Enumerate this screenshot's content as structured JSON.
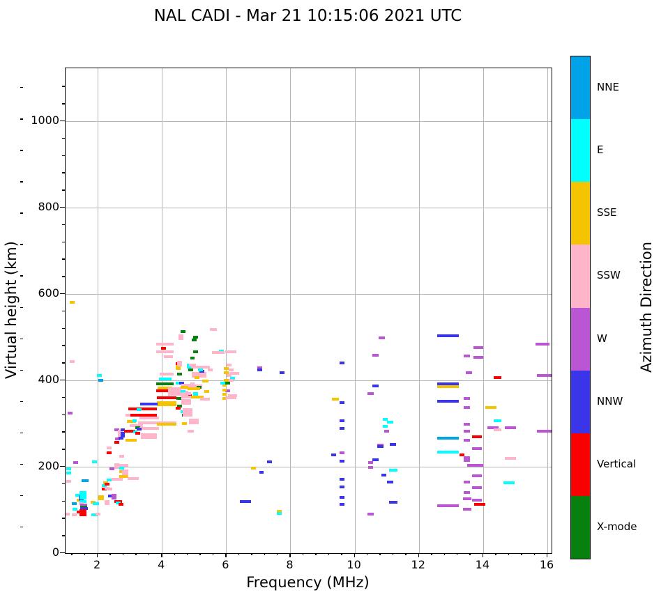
{
  "title": "NAL CADI - Mar 21 10:15:06 2021 UTC",
  "chart_data": {
    "type": "scatter",
    "title": "NAL CADI - Mar 21 10:15:06 2021 UTC",
    "xlabel": "Frequency (MHz)",
    "ylabel": "Virtual height (km)",
    "xlim": [
      1.0,
      16.1
    ],
    "ylim": [
      0,
      1122
    ],
    "x_major_ticks": [
      2,
      4,
      6,
      8,
      10,
      12,
      14,
      16
    ],
    "y_major_ticks": [
      0,
      200,
      400,
      600,
      800,
      1000
    ],
    "x_minor_step": 0.4,
    "y_minor_step": 40,
    "grid": true,
    "colorbar": {
      "label": "Azimuth Direction",
      "categories_top_to_bottom": [
        "NNE",
        "E",
        "SSE",
        "SSW",
        "W",
        "NNW",
        "Vertical",
        "X-mode"
      ],
      "colors": {
        "NNE": "#00a2e8",
        "E": "#00ffff",
        "SSE": "#f5c400",
        "SSW": "#ffb5c9",
        "W": "#ba55d3",
        "NNW": "#3a35e8",
        "Vertical": "#fa0000",
        "X-mode": "#088010"
      }
    },
    "direction_codes": {
      "V": "Vertical",
      "X": "X-mode"
    },
    "point_format": "[freq_MHz, virtual_height_km, direction, optional_width_MHz]",
    "points": [
      [
        1.2,
        580,
        "SSE"
      ],
      [
        1.2,
        443,
        "SSW"
      ],
      [
        1.15,
        324,
        "W"
      ],
      [
        1.32,
        210,
        "W"
      ],
      [
        1.1,
        195,
        "E"
      ],
      [
        1.1,
        185,
        "E"
      ],
      [
        1.1,
        166,
        "SSW"
      ],
      [
        1.9,
        211,
        "E"
      ],
      [
        1.05,
        91,
        "SSW"
      ],
      [
        1.27,
        88,
        "SSW"
      ],
      [
        1.28,
        115,
        "NNE"
      ],
      [
        1.3,
        102,
        "E"
      ],
      [
        1.37,
        134,
        "E"
      ],
      [
        1.43,
        122,
        "SSE"
      ],
      [
        1.48,
        131,
        "NNW"
      ],
      [
        1.48,
        124,
        "NNW"
      ],
      [
        1.55,
        140,
        "E",
        0.22
      ],
      [
        1.55,
        134,
        "E",
        0.22
      ],
      [
        1.55,
        127,
        "E",
        0.22
      ],
      [
        1.55,
        120,
        "E",
        0.22
      ],
      [
        1.48,
        115,
        "SSW"
      ],
      [
        1.57,
        111,
        "W",
        0.22
      ],
      [
        1.57,
        107,
        "X",
        0.22
      ],
      [
        1.58,
        103,
        "NNW",
        0.25
      ],
      [
        1.55,
        99,
        "V",
        0.22
      ],
      [
        1.55,
        94,
        "V",
        0.22
      ],
      [
        1.55,
        89,
        "V",
        0.22
      ],
      [
        1.43,
        95,
        "V"
      ],
      [
        1.6,
        168,
        "NNE",
        0.22
      ],
      [
        1.85,
        117,
        "SSE"
      ],
      [
        1.95,
        114,
        "E",
        0.2
      ],
      [
        2.1,
        131,
        "SSE",
        0.18
      ],
      [
        2.1,
        126,
        "SSE",
        0.18
      ],
      [
        1.9,
        89,
        "E",
        0.2
      ],
      [
        2.0,
        90,
        "SSW"
      ],
      [
        2.2,
        148,
        "V"
      ],
      [
        2.3,
        150,
        "SSW"
      ],
      [
        2.38,
        149,
        "SSW"
      ],
      [
        2.4,
        133,
        "NNW"
      ],
      [
        2.5,
        134,
        "W"
      ],
      [
        2.5,
        128,
        "W"
      ],
      [
        2.6,
        120,
        "V"
      ],
      [
        2.68,
        119,
        "V"
      ],
      [
        2.64,
        116,
        "E"
      ],
      [
        2.72,
        113,
        "V"
      ],
      [
        2.3,
        120,
        "SSW"
      ],
      [
        2.3,
        114,
        "SSW"
      ],
      [
        2.2,
        156,
        "E"
      ],
      [
        2.25,
        163,
        "SSE"
      ],
      [
        2.3,
        160,
        "V"
      ],
      [
        2.35,
        170,
        "E"
      ],
      [
        2.05,
        411,
        "E"
      ],
      [
        2.1,
        400,
        "NNE"
      ],
      [
        2.35,
        243,
        "SSW"
      ],
      [
        2.35,
        232,
        "V"
      ],
      [
        2.45,
        195,
        "W"
      ],
      [
        2.6,
        205,
        "SSW"
      ],
      [
        2.6,
        199,
        "SSW"
      ],
      [
        2.75,
        197,
        "E"
      ],
      [
        2.8,
        203,
        "SSW",
        0.3
      ],
      [
        2.75,
        189,
        "SSE"
      ],
      [
        2.85,
        190,
        "SSW",
        0.2
      ],
      [
        2.85,
        184,
        "SSW",
        0.2
      ],
      [
        2.85,
        178,
        "SSW",
        0.2
      ],
      [
        2.8,
        178,
        "SSE",
        0.25
      ],
      [
        2.6,
        171,
        "SSW",
        0.35
      ],
      [
        3.1,
        172,
        "SSW",
        0.35
      ],
      [
        2.75,
        224,
        "SSW"
      ],
      [
        2.6,
        285,
        "W"
      ],
      [
        2.7,
        283,
        "SSW"
      ],
      [
        2.7,
        277,
        "SSW"
      ],
      [
        2.7,
        271,
        "SSW"
      ],
      [
        2.78,
        285,
        "NNW"
      ],
      [
        2.78,
        278,
        "NNW"
      ],
      [
        2.78,
        271,
        "NNW"
      ],
      [
        3.0,
        282,
        "V",
        0.35
      ],
      [
        3.17,
        280,
        "E"
      ],
      [
        3.25,
        277,
        "V"
      ],
      [
        3.6,
        274,
        "SSW",
        0.5
      ],
      [
        3.6,
        268,
        "SSW",
        0.5
      ],
      [
        2.62,
        264,
        "W"
      ],
      [
        2.72,
        266,
        "NNW"
      ],
      [
        3.05,
        262,
        "SSE",
        0.35
      ],
      [
        2.6,
        256,
        "V"
      ],
      [
        4.1,
        392,
        "X",
        0.55
      ],
      [
        4.5,
        394,
        "E"
      ],
      [
        4.62,
        393,
        "NNW"
      ],
      [
        4.1,
        383,
        "SSE",
        0.45
      ],
      [
        4.1,
        376,
        "V",
        0.55
      ],
      [
        4.15,
        360,
        "V",
        0.6
      ],
      [
        4.4,
        371,
        "E"
      ],
      [
        4.15,
        349,
        "SSE",
        0.6
      ],
      [
        4.15,
        343,
        "SSE",
        0.6
      ],
      [
        3.6,
        345,
        "NNW",
        0.55
      ],
      [
        3.4,
        334,
        "V",
        0.9
      ],
      [
        3.3,
        333,
        "E"
      ],
      [
        3.4,
        319,
        "V",
        0.9
      ],
      [
        3.6,
        313,
        "SSW",
        0.6
      ],
      [
        2.95,
        320,
        "SSW"
      ],
      [
        3.05,
        305,
        "SSE",
        0.3
      ],
      [
        3.15,
        306,
        "E"
      ],
      [
        3.85,
        302,
        "SSW",
        1.2
      ],
      [
        4.15,
        299,
        "SSE",
        0.6
      ],
      [
        3.2,
        295,
        "SSW",
        0.4
      ],
      [
        3.25,
        290,
        "X"
      ],
      [
        3.6,
        289,
        "SSW",
        0.6
      ],
      [
        3.3,
        287,
        "NNW"
      ],
      [
        4.75,
        388,
        "SSW",
        0.3
      ],
      [
        4.75,
        382,
        "SSW",
        0.3
      ],
      [
        5.1,
        387,
        "SSW",
        0.3
      ],
      [
        4.85,
        365,
        "V"
      ],
      [
        4.55,
        341,
        "X"
      ],
      [
        4.65,
        328,
        "E"
      ],
      [
        4.7,
        320,
        "X"
      ],
      [
        4.8,
        332,
        "SSW",
        0.3
      ],
      [
        4.8,
        326,
        "SSW",
        0.3
      ],
      [
        4.8,
        319,
        "SSW",
        0.3
      ],
      [
        5.0,
        308,
        "SSW",
        0.3
      ],
      [
        5.0,
        302,
        "SSW",
        0.3
      ],
      [
        4.7,
        300,
        "SSE"
      ],
      [
        4.9,
        283,
        "SSW",
        0.2
      ],
      [
        4.4,
        380,
        "SSW",
        0.4
      ],
      [
        4.4,
        374,
        "SSW",
        0.4
      ],
      [
        4.4,
        368,
        "SSW",
        0.4
      ],
      [
        4.7,
        372,
        "SSW",
        0.25
      ],
      [
        4.7,
        364,
        "SSW",
        0.25
      ],
      [
        4.5,
        336,
        "V"
      ],
      [
        4.65,
        375,
        "E"
      ],
      [
        4.52,
        358,
        "X"
      ],
      [
        4.15,
        415,
        "SSW",
        0.45
      ],
      [
        4.1,
        404,
        "E",
        0.4
      ],
      [
        4.5,
        432,
        "SSE"
      ],
      [
        4.5,
        427,
        "SSE"
      ],
      [
        4.5,
        439,
        "V"
      ],
      [
        4.85,
        436,
        "E"
      ],
      [
        4.85,
        430,
        "E"
      ],
      [
        4.55,
        414,
        "X"
      ],
      [
        4.9,
        424,
        "X"
      ],
      [
        5.2,
        430,
        "SSW",
        0.6
      ],
      [
        5.15,
        416,
        "SSW",
        0.45
      ],
      [
        5.15,
        410,
        "SSW",
        0.45
      ],
      [
        5.25,
        421,
        "NNW"
      ],
      [
        5.1,
        406,
        "SSE"
      ],
      [
        5.35,
        399,
        "SSE",
        0.2
      ],
      [
        4.95,
        392,
        "SSW"
      ],
      [
        4.95,
        386,
        "SSW"
      ],
      [
        4.7,
        384,
        "SSE",
        0.25
      ],
      [
        5.15,
        384,
        "X"
      ],
      [
        5.0,
        380,
        "SSE",
        0.4
      ],
      [
        5.05,
        370,
        "E"
      ],
      [
        5.05,
        364,
        "E"
      ],
      [
        5.1,
        361,
        "SSE",
        0.4
      ],
      [
        4.75,
        370,
        "SSW",
        0.3
      ],
      [
        4.75,
        362,
        "SSW",
        0.3
      ],
      [
        4.75,
        354,
        "SSW",
        0.3
      ],
      [
        4.75,
        347,
        "SSW",
        0.3
      ],
      [
        5.35,
        356,
        "SSW",
        0.3
      ],
      [
        5.4,
        375,
        "SSE"
      ],
      [
        5.5,
        424,
        "SSW"
      ],
      [
        6.05,
        376,
        "W"
      ],
      [
        5.95,
        388,
        "SSE"
      ],
      [
        5.95,
        378,
        "SSE"
      ],
      [
        5.95,
        368,
        "SSE"
      ],
      [
        5.95,
        358,
        "SSE"
      ],
      [
        6.2,
        364,
        "SSW",
        0.3
      ],
      [
        6.2,
        405,
        "E"
      ],
      [
        6.25,
        416,
        "SSW",
        0.3
      ],
      [
        6.05,
        393,
        "X"
      ],
      [
        4.1,
        484,
        "SSW",
        0.55
      ],
      [
        4.1,
        466,
        "SSW",
        0.55
      ],
      [
        4.6,
        503,
        "SSW"
      ],
      [
        4.6,
        497,
        "SSW"
      ],
      [
        5.6,
        518,
        "SSW",
        0.2
      ],
      [
        4.65,
        513,
        "X"
      ],
      [
        5.0,
        494,
        "X"
      ],
      [
        5.05,
        500,
        "X"
      ],
      [
        5.05,
        466,
        "X"
      ],
      [
        4.95,
        451,
        "X"
      ],
      [
        5.85,
        468,
        "E"
      ],
      [
        5.75,
        464,
        "SSW",
        0.4
      ],
      [
        6.15,
        466,
        "SSW",
        0.35
      ],
      [
        4.55,
        442,
        "SSW"
      ],
      [
        4.55,
        436,
        "SSW"
      ],
      [
        4.95,
        436,
        "SSW",
        0.2
      ],
      [
        5.2,
        424,
        "E"
      ],
      [
        4.05,
        475,
        "V"
      ],
      [
        4.2,
        455,
        "SSW",
        0.3
      ],
      [
        6.1,
        435,
        "SSW"
      ],
      [
        6.15,
        425,
        "SSW"
      ],
      [
        6.1,
        412,
        "SSW"
      ],
      [
        6.15,
        400,
        "SSW"
      ],
      [
        6.0,
        428,
        "SSE"
      ],
      [
        6.0,
        418,
        "SSE"
      ],
      [
        6.0,
        400,
        "SSE"
      ],
      [
        7.05,
        429,
        "W"
      ],
      [
        7.05,
        425,
        "NNW"
      ],
      [
        7.75,
        417,
        "NNW"
      ],
      [
        5.9,
        393,
        "E"
      ],
      [
        6.15,
        360,
        "SSW",
        0.35
      ],
      [
        7.35,
        211,
        "NNW"
      ],
      [
        6.85,
        197,
        "SSE"
      ],
      [
        7.1,
        187,
        "NNW"
      ],
      [
        6.6,
        119,
        "NNW",
        0.35
      ],
      [
        7.65,
        97,
        "SSE"
      ],
      [
        7.65,
        92,
        "E"
      ],
      [
        9.35,
        227,
        "NNW"
      ],
      [
        9.4,
        356,
        "SSE",
        0.2
      ],
      [
        9.6,
        440,
        "NNW"
      ],
      [
        9.6,
        348,
        "NNW"
      ],
      [
        9.6,
        307,
        "NNW"
      ],
      [
        9.6,
        289,
        "NNW"
      ],
      [
        9.6,
        232,
        "W"
      ],
      [
        9.6,
        213,
        "NNW"
      ],
      [
        9.6,
        171,
        "NNW"
      ],
      [
        9.6,
        153,
        "NNW"
      ],
      [
        9.6,
        129,
        "NNW"
      ],
      [
        9.6,
        113,
        "NNW"
      ],
      [
        10.85,
        498,
        "W",
        0.2
      ],
      [
        10.65,
        458,
        "W",
        0.2
      ],
      [
        10.65,
        387,
        "NNW",
        0.2
      ],
      [
        10.5,
        369,
        "W",
        0.2
      ],
      [
        10.95,
        310,
        "E"
      ],
      [
        11.1,
        303,
        "E",
        0.2
      ],
      [
        10.95,
        294,
        "E"
      ],
      [
        11.0,
        282,
        "W"
      ],
      [
        10.8,
        250,
        "W",
        0.2
      ],
      [
        10.8,
        246,
        "NNW",
        0.2
      ],
      [
        11.2,
        251,
        "NNW",
        0.2
      ],
      [
        10.65,
        216,
        "NNW",
        0.2
      ],
      [
        10.5,
        210,
        "W"
      ],
      [
        10.5,
        198,
        "W"
      ],
      [
        11.2,
        192,
        "E",
        0.25
      ],
      [
        10.9,
        181,
        "NNW"
      ],
      [
        11.1,
        165,
        "NNW",
        0.2
      ],
      [
        11.2,
        118,
        "NNW",
        0.25
      ],
      [
        10.5,
        90,
        "W",
        0.2
      ],
      [
        12.9,
        503,
        "NNW",
        0.68
      ],
      [
        12.9,
        392,
        "NNW",
        0.68
      ],
      [
        12.9,
        385,
        "SSE",
        0.68
      ],
      [
        12.9,
        351,
        "NNW",
        0.68
      ],
      [
        12.9,
        266,
        "NNE",
        0.68
      ],
      [
        12.9,
        234,
        "E",
        0.68
      ],
      [
        12.9,
        110,
        "W",
        0.68
      ],
      [
        13.85,
        476,
        "W",
        0.3
      ],
      [
        15.85,
        484,
        "W",
        0.45
      ],
      [
        13.5,
        456,
        "W",
        0.2
      ],
      [
        13.85,
        453,
        "W",
        0.3
      ],
      [
        13.55,
        418,
        "W",
        0.2
      ],
      [
        14.45,
        406,
        "V",
        0.25
      ],
      [
        15.9,
        412,
        "W",
        0.45
      ],
      [
        13.5,
        358,
        "W",
        0.2
      ],
      [
        13.5,
        337,
        "W",
        0.2
      ],
      [
        14.25,
        337,
        "SSE",
        0.35
      ],
      [
        14.45,
        307,
        "E",
        0.25
      ],
      [
        13.5,
        299,
        "W",
        0.2
      ],
      [
        14.3,
        290,
        "W",
        0.35
      ],
      [
        14.85,
        290,
        "W",
        0.35
      ],
      [
        14.45,
        286,
        "SSW",
        0.25
      ],
      [
        15.9,
        283,
        "W",
        0.45
      ],
      [
        13.5,
        283,
        "W",
        0.2
      ],
      [
        13.8,
        269,
        "V",
        0.3
      ],
      [
        13.5,
        261,
        "W",
        0.2
      ],
      [
        13.8,
        242,
        "W",
        0.3
      ],
      [
        13.35,
        227,
        "V"
      ],
      [
        13.5,
        221,
        "W",
        0.2
      ],
      [
        14.85,
        219,
        "SSW",
        0.35
      ],
      [
        13.5,
        215,
        "W",
        0.2
      ],
      [
        13.75,
        203,
        "W",
        0.5
      ],
      [
        13.8,
        179,
        "W",
        0.3
      ],
      [
        13.5,
        164,
        "W",
        0.2
      ],
      [
        14.8,
        163,
        "E",
        0.35
      ],
      [
        13.8,
        152,
        "W",
        0.3
      ],
      [
        13.5,
        140,
        "W",
        0.2
      ],
      [
        13.5,
        126,
        "W",
        0.25
      ],
      [
        13.8,
        123,
        "W",
        0.3
      ],
      [
        13.9,
        113,
        "V",
        0.35
      ],
      [
        13.5,
        102,
        "W",
        0.25
      ]
    ]
  }
}
